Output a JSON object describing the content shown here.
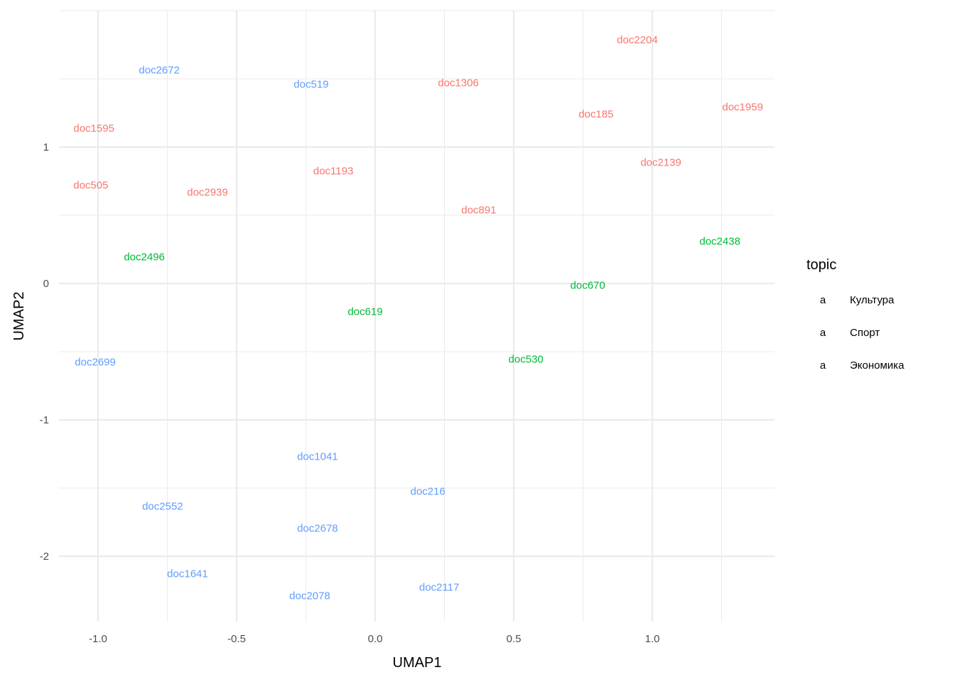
{
  "chart_data": {
    "type": "scatter",
    "title": "",
    "xlabel": "UMAP1",
    "ylabel": "UMAP2",
    "xlim": [
      -1.141,
      1.441
    ],
    "ylim": [
      -2.479,
      2.0
    ],
    "xticks": [
      -1.0,
      -0.5,
      0.0,
      0.5,
      1.0
    ],
    "xtick_labels": [
      "-1.0",
      "-0.5",
      "0.0",
      "0.5",
      "1.0"
    ],
    "yticks": [
      -2,
      -1,
      0,
      1
    ],
    "ytick_labels": [
      "-2",
      "-1",
      "0",
      "1"
    ],
    "grid": true,
    "legend": {
      "title": "topic",
      "placement": "right",
      "key_glyph": "a",
      "entries": [
        {
          "label": "Культура",
          "color": "#F8766D"
        },
        {
          "label": "Спорт",
          "color": "#00BA38"
        },
        {
          "label": "Экономика",
          "color": "#619CFF"
        }
      ]
    },
    "series": [
      {
        "name": "Культура",
        "color": "#F8766D",
        "points": [
          {
            "label": "doc2204",
            "x": 0.946,
            "y": 1.79
          },
          {
            "label": "doc1306",
            "x": 0.3,
            "y": 1.474
          },
          {
            "label": "doc185",
            "x": 0.797,
            "y": 1.245
          },
          {
            "label": "doc1959",
            "x": 1.326,
            "y": 1.297
          },
          {
            "label": "doc1595",
            "x": -1.015,
            "y": 1.141
          },
          {
            "label": "doc2139",
            "x": 1.031,
            "y": 0.891
          },
          {
            "label": "doc1193",
            "x": -0.151,
            "y": 0.828
          },
          {
            "label": "doc505",
            "x": -1.026,
            "y": 0.724
          },
          {
            "label": "doc2939",
            "x": -0.605,
            "y": 0.672
          },
          {
            "label": "doc891",
            "x": 0.374,
            "y": 0.542
          }
        ]
      },
      {
        "name": "Спорт",
        "color": "#00BA38",
        "points": [
          {
            "label": "doc2438",
            "x": 1.244,
            "y": 0.313
          },
          {
            "label": "doc2496",
            "x": -0.833,
            "y": 0.198
          },
          {
            "label": "doc670",
            "x": 0.767,
            "y": -0.01
          },
          {
            "label": "doc619",
            "x": -0.036,
            "y": -0.203
          },
          {
            "label": "doc530",
            "x": 0.544,
            "y": -0.552
          }
        ]
      },
      {
        "name": "Экономика",
        "color": "#619CFF",
        "points": [
          {
            "label": "doc2672",
            "x": -0.779,
            "y": 1.568
          },
          {
            "label": "doc519",
            "x": -0.231,
            "y": 1.464
          },
          {
            "label": "doc2699",
            "x": -1.01,
            "y": -0.573
          },
          {
            "label": "doc1041",
            "x": -0.208,
            "y": -1.266
          },
          {
            "label": "doc216",
            "x": 0.19,
            "y": -1.521
          },
          {
            "label": "doc2552",
            "x": -0.767,
            "y": -1.63
          },
          {
            "label": "doc2678",
            "x": -0.208,
            "y": -1.792
          },
          {
            "label": "doc1641",
            "x": -0.677,
            "y": -2.125
          },
          {
            "label": "doc2117",
            "x": 0.231,
            "y": -2.224
          },
          {
            "label": "doc2078",
            "x": -0.236,
            "y": -2.286
          }
        ]
      }
    ]
  }
}
